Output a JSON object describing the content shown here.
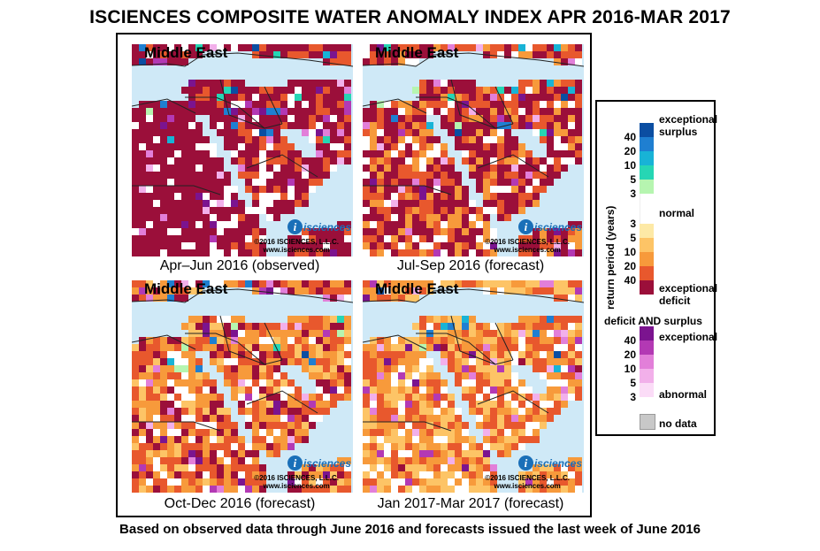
{
  "title": "ISCIENCES COMPOSITE WATER ANOMALY INDEX APR 2016-MAR 2017",
  "footnote": "Based on observed data through June 2016 and forecasts issued the last week of June 2016",
  "panels": [
    {
      "region": "Middle East",
      "caption": "Apr–Jun 2016 (observed)",
      "logo": "isciences",
      "copyright": "©2016 ISCIENCES, L.L.C.",
      "website": "www.isciences.com",
      "intensity": 0.95
    },
    {
      "region": "Middle East",
      "caption": "Jul-Sep 2016 (forecast)",
      "logo": "isciences",
      "copyright": "©2016 ISCIENCES, L.L.C.",
      "website": "www.isciences.com",
      "intensity": 0.7
    },
    {
      "region": "Middle East",
      "caption": "Oct-Dec 2016 (forecast)",
      "logo": "isciences",
      "copyright": "©2016 ISCIENCES, L.L.C.",
      "website": "www.isciences.com",
      "intensity": 0.45
    },
    {
      "region": "Middle East",
      "caption": "Jan 2017-Mar 2017 (forecast)",
      "logo": "isciences",
      "copyright": "©2016 ISCIENCES, L.L.C.",
      "website": "www.isciences.com",
      "intensity": 0.3
    }
  ],
  "legend": {
    "axis_label": "return period (years)",
    "surplus_label_1": "exceptional",
    "surplus_label_2": "surplus",
    "normal_label": "normal",
    "deficit_label_1": "exceptional",
    "deficit_label_2": "deficit",
    "both_title": "deficit AND surplus",
    "both_exceptional": "exceptional",
    "both_abnormal": "abnormal",
    "nodata_label": "no data",
    "surplus_ticks": [
      "40",
      "20",
      "10",
      "5",
      "3"
    ],
    "deficit_ticks": [
      "3",
      "5",
      "10",
      "20",
      "40"
    ],
    "both_ticks": [
      "40",
      "20",
      "10",
      "5",
      "3"
    ],
    "colors": {
      "surplus": [
        "#0b4ea2",
        "#1f7fd1",
        "#18b3d6",
        "#26d6b4",
        "#b6f5b0"
      ],
      "normal": "#ffffff",
      "deficit": [
        "#fde9a6",
        "#fdc466",
        "#f79a3b",
        "#e8582d",
        "#9b0f3a"
      ],
      "both": [
        "#7b148f",
        "#b339b4",
        "#e27fd9",
        "#f2b0ea",
        "#fbdcf7"
      ],
      "nodata": "#c8c8c8",
      "water": "#cfe9f7"
    }
  }
}
